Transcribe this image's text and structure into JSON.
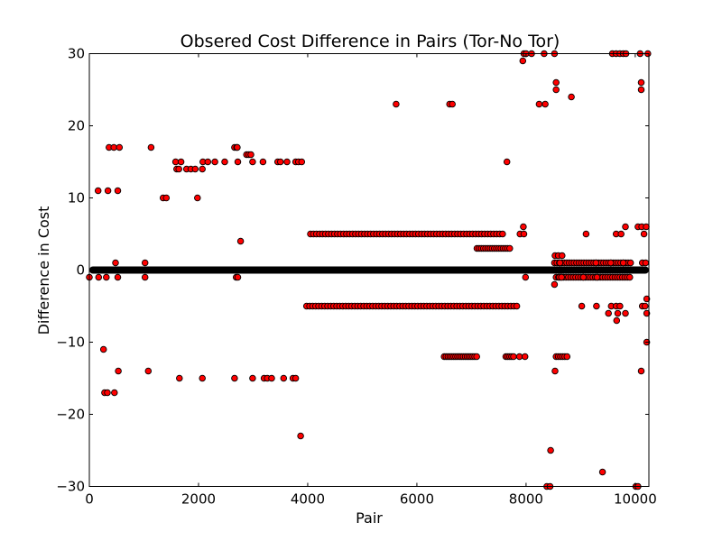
{
  "chart_data": {
    "type": "scatter",
    "title": "Obsered Cost Difference in Pairs (Tor-No Tor)",
    "xlabel": "Pair",
    "ylabel": "Difference in Cost",
    "xlim": [
      0,
      10250
    ],
    "ylim": [
      -30,
      30
    ],
    "xticks": [
      0,
      2000,
      4000,
      6000,
      8000,
      10000
    ],
    "yticks": [
      -30,
      -20,
      -10,
      0,
      10,
      20,
      30
    ],
    "xtick_labels": [
      "0",
      "2000",
      "4000",
      "6000",
      "8000",
      "10000"
    ],
    "ytick_labels": [
      "−30",
      "−20",
      "−10",
      "0",
      "10",
      "20",
      "30"
    ],
    "grid": false,
    "marker": {
      "fill": "#ff0000",
      "edge": "#000000"
    },
    "zero_band": {
      "y": 0,
      "x_start": 0,
      "x_end": 10250
    },
    "series": [
      {
        "points": [
          [
            0,
            -1
          ],
          [
            170,
            -1
          ],
          [
            310,
            -1
          ],
          [
            520,
            -1
          ],
          [
            1020,
            -1
          ],
          [
            160,
            11
          ],
          [
            340,
            11
          ],
          [
            520,
            11
          ],
          [
            360,
            17
          ],
          [
            450,
            17
          ],
          [
            550,
            17
          ],
          [
            1130,
            17
          ],
          [
            480,
            1
          ],
          [
            1020,
            1
          ],
          [
            260,
            -11
          ],
          [
            280,
            -17
          ],
          [
            330,
            -17
          ],
          [
            460,
            -17
          ],
          [
            530,
            -14
          ],
          [
            1080,
            -14
          ],
          [
            1350,
            10
          ],
          [
            1410,
            10
          ],
          [
            1980,
            10
          ],
          [
            1600,
            14
          ],
          [
            1640,
            14
          ],
          [
            1780,
            14
          ],
          [
            1860,
            14
          ],
          [
            1940,
            14
          ],
          [
            2070,
            14
          ],
          [
            1580,
            15
          ],
          [
            1680,
            15
          ],
          [
            2080,
            15
          ],
          [
            2170,
            15
          ],
          [
            2300,
            15
          ],
          [
            2480,
            15
          ],
          [
            2720,
            15
          ],
          [
            2990,
            15
          ],
          [
            3180,
            15
          ],
          [
            3450,
            15
          ],
          [
            3500,
            15
          ],
          [
            3620,
            15
          ],
          [
            3780,
            15
          ],
          [
            3830,
            15
          ],
          [
            3890,
            15
          ],
          [
            2660,
            17
          ],
          [
            2700,
            17
          ],
          [
            2710,
            17
          ],
          [
            2880,
            16
          ],
          [
            2920,
            16
          ],
          [
            2960,
            16
          ],
          [
            2770,
            4
          ],
          [
            2690,
            -1
          ],
          [
            2720,
            -1
          ],
          [
            1650,
            -15
          ],
          [
            2070,
            -15
          ],
          [
            2660,
            -15
          ],
          [
            2990,
            -15
          ],
          [
            3200,
            -15
          ],
          [
            3260,
            -15
          ],
          [
            3340,
            -15
          ],
          [
            3560,
            -15
          ],
          [
            3730,
            -15
          ],
          [
            3780,
            -15
          ],
          [
            3870,
            -23
          ],
          [
            5620,
            23
          ],
          [
            6600,
            23
          ],
          [
            6650,
            23
          ],
          [
            7650,
            15
          ],
          [
            7940,
            29
          ],
          [
            7960,
            30
          ],
          [
            8000,
            30
          ],
          [
            8100,
            30
          ],
          [
            8330,
            30
          ],
          [
            8520,
            30
          ],
          [
            8240,
            23
          ],
          [
            8350,
            23
          ],
          [
            8830,
            24
          ],
          [
            8550,
            26
          ],
          [
            8550,
            25
          ],
          [
            9580,
            30
          ],
          [
            9650,
            30
          ],
          [
            9720,
            30
          ],
          [
            9780,
            30
          ],
          [
            9830,
            30
          ],
          [
            10090,
            30
          ],
          [
            10230,
            30
          ],
          [
            10110,
            26
          ],
          [
            10110,
            25
          ],
          [
            7890,
            5
          ],
          [
            7960,
            5
          ],
          [
            7950,
            6
          ],
          [
            9820,
            6
          ],
          [
            10050,
            6
          ],
          [
            10120,
            6
          ],
          [
            10200,
            6
          ],
          [
            9100,
            5
          ],
          [
            9650,
            5
          ],
          [
            9740,
            5
          ],
          [
            10160,
            5
          ],
          [
            8530,
            2
          ],
          [
            8590,
            2
          ],
          [
            8620,
            1
          ],
          [
            8660,
            2
          ],
          [
            9280,
            1
          ],
          [
            9550,
            1
          ],
          [
            9780,
            1
          ],
          [
            10130,
            1
          ],
          [
            10190,
            1
          ],
          [
            7990,
            -1
          ],
          [
            8610,
            -1
          ],
          [
            8650,
            -1
          ],
          [
            9050,
            -1
          ],
          [
            9300,
            -1
          ],
          [
            8520,
            -2
          ],
          [
            8530,
            -14
          ],
          [
            9020,
            -5
          ],
          [
            9290,
            -5
          ],
          [
            9560,
            -5
          ],
          [
            9650,
            -5
          ],
          [
            9720,
            -5
          ],
          [
            10130,
            -5
          ],
          [
            10180,
            -5
          ],
          [
            9510,
            -6
          ],
          [
            9680,
            -6
          ],
          [
            9820,
            -6
          ],
          [
            10210,
            -6
          ],
          [
            9660,
            -7
          ],
          [
            10210,
            -4
          ],
          [
            10210,
            -10
          ],
          [
            10110,
            -14
          ],
          [
            7880,
            -12
          ],
          [
            7980,
            -12
          ],
          [
            8450,
            -25
          ],
          [
            8380,
            -30
          ],
          [
            8440,
            -30
          ],
          [
            10010,
            -30
          ],
          [
            10050,
            -30
          ],
          [
            9400,
            -28
          ]
        ],
        "bands": [
          {
            "y": 5,
            "x_start": 4050,
            "x_end": 7600,
            "step": 55
          },
          {
            "y": -5,
            "x_start": 3980,
            "x_end": 7840,
            "step": 55
          },
          {
            "y": 3,
            "x_start": 7100,
            "x_end": 7700,
            "step": 40
          },
          {
            "y": -12,
            "x_start": 6500,
            "x_end": 7100,
            "step": 35
          },
          {
            "y": -12,
            "x_start": 7630,
            "x_end": 7800,
            "step": 35
          },
          {
            "y": 1,
            "x_start": 8520,
            "x_end": 9950,
            "step": 45
          },
          {
            "y": -1,
            "x_start": 8550,
            "x_end": 9900,
            "step": 45
          },
          {
            "y": -12,
            "x_start": 8550,
            "x_end": 8750,
            "step": 40
          }
        ]
      }
    ]
  }
}
